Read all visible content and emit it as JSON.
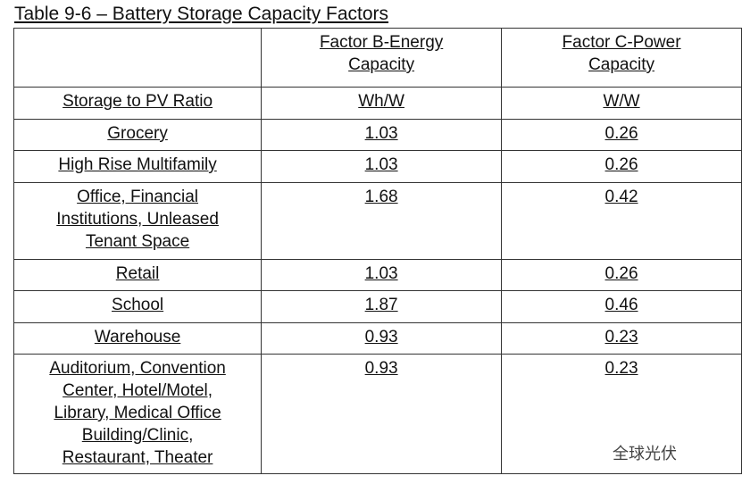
{
  "header": {
    "title": "Table 9-6 – Battery Storage Capacity Factors"
  },
  "table": {
    "columns": [
      [
        "Factor B-Energy",
        "Capacity"
      ],
      [
        "Factor C-Power",
        "Capacity"
      ]
    ],
    "rows": [
      [
        [
          "Storage to PV Ratio"
        ],
        "Wh/W",
        "W/W"
      ],
      [
        [
          "Grocery"
        ],
        "1.03",
        "0.26"
      ],
      [
        [
          "High Rise Multifamily"
        ],
        "1.03",
        "0.26"
      ],
      [
        [
          "Office, Financial",
          "Institutions, Unleased",
          "Tenant Space"
        ],
        "1.68",
        "0.42"
      ],
      [
        [
          "Retail"
        ],
        "1.03",
        "0.26"
      ],
      [
        [
          "School"
        ],
        "1.87",
        "0.46"
      ],
      [
        [
          "Warehouse"
        ],
        "0.93",
        "0.23"
      ],
      [
        [
          "Auditorium, Convention",
          "Center, Hotel/Motel,",
          "Library, Medical Office",
          "Building/Clinic,",
          "Restaurant, Theater"
        ],
        "0.93",
        "0.23"
      ]
    ]
  },
  "watermark": "全球光伏"
}
